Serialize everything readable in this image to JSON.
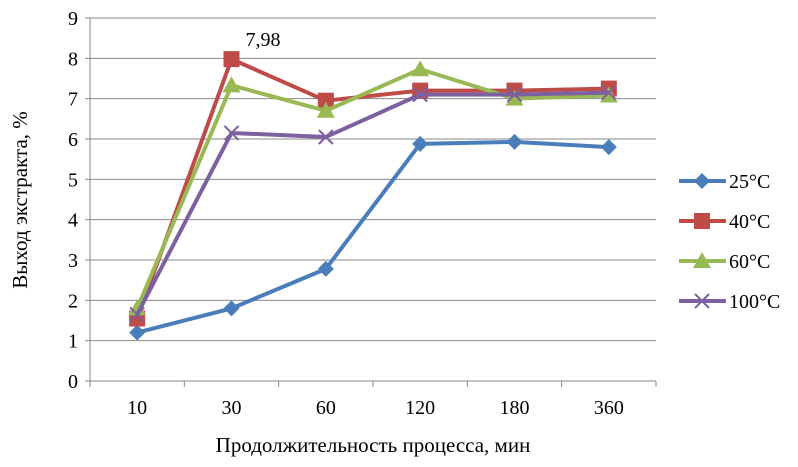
{
  "chart_data": {
    "type": "line",
    "title": "",
    "xlabel": "Продолжительность процесса, мин",
    "ylabel": "Выход экстракта, %",
    "categories": [
      "10",
      "30",
      "60",
      "120",
      "180",
      "360"
    ],
    "ylim": [
      0,
      9
    ],
    "yticks": [
      "0",
      "1",
      "2",
      "3",
      "4",
      "5",
      "6",
      "7",
      "8",
      "9"
    ],
    "grid": true,
    "legend_position": "right",
    "series": [
      {
        "name": "25°C",
        "color": "#4a7ebb",
        "marker": "diamond",
        "values": [
          1.2,
          1.8,
          2.78,
          5.88,
          5.93,
          5.8
        ]
      },
      {
        "name": "40°C",
        "color": "#be4b48",
        "marker": "square",
        "values": [
          1.55,
          7.98,
          6.95,
          7.2,
          7.2,
          7.25
        ]
      },
      {
        "name": "60°C",
        "color": "#98b954",
        "marker": "triangle",
        "values": [
          1.8,
          7.33,
          6.7,
          7.73,
          7.0,
          7.08
        ]
      },
      {
        "name": "100°C",
        "color": "#7d60a0",
        "marker": "x",
        "values": [
          1.65,
          6.15,
          6.05,
          7.1,
          7.1,
          7.15
        ]
      }
    ],
    "annotations": [
      {
        "text": "7,98",
        "series": "40°C",
        "category": "30"
      }
    ]
  }
}
